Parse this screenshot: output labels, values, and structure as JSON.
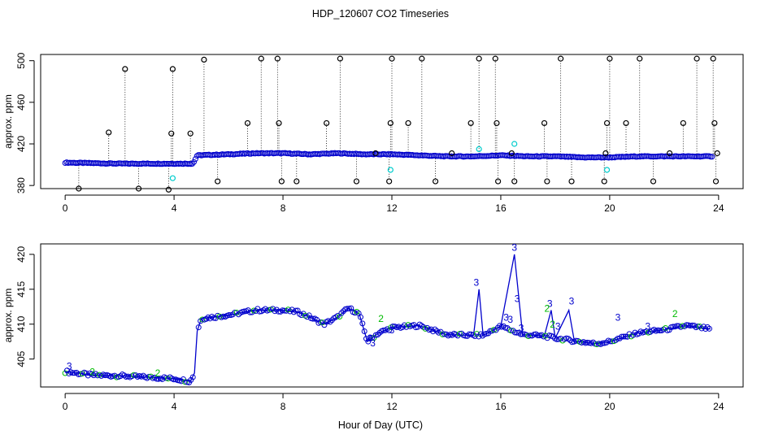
{
  "title": "HDP_120607  CO2 Timeseries",
  "colors": {
    "black": "#000000",
    "blue": "#0000cc",
    "cyan": "#00cccc",
    "green": "#00bb00"
  },
  "chart_data": [
    {
      "type": "scatter",
      "ylabel": "approx. ppm",
      "xlim": [
        -0.9,
        24.9
      ],
      "ylim": [
        377,
        506
      ],
      "xticks": [
        0,
        4,
        8,
        12,
        16,
        20,
        24
      ],
      "yticks": [
        380,
        420,
        460,
        500
      ],
      "xticklabels": [
        "0",
        "4",
        "8",
        "12",
        "16",
        "20",
        "24"
      ],
      "yticklabels": [
        "380",
        "420",
        "460",
        "500"
      ],
      "baseline_segments": [
        [
          0,
          402
        ],
        [
          2,
          401
        ],
        [
          4,
          401
        ],
        [
          4.7,
          401
        ],
        [
          4.85,
          409
        ],
        [
          6,
          410
        ],
        [
          7,
          411
        ],
        [
          8,
          411
        ],
        [
          9,
          410
        ],
        [
          10,
          411
        ],
        [
          11,
          410
        ],
        [
          12,
          410
        ],
        [
          13,
          409
        ],
        [
          14,
          408
        ],
        [
          15,
          408
        ],
        [
          16,
          409
        ],
        [
          17,
          408
        ],
        [
          18,
          408
        ],
        [
          19,
          407
        ],
        [
          20,
          407
        ],
        [
          21,
          408
        ],
        [
          22,
          408
        ],
        [
          23,
          408
        ],
        [
          23.8,
          408
        ]
      ],
      "spikes": [
        [
          0.5,
          377
        ],
        [
          1.6,
          431
        ],
        [
          2.2,
          492
        ],
        [
          2.7,
          377
        ],
        [
          3.8,
          376
        ],
        [
          3.9,
          430
        ],
        [
          3.95,
          492
        ],
        [
          4.6,
          430
        ],
        [
          5.1,
          501
        ],
        [
          5.6,
          384
        ],
        [
          6.7,
          440
        ],
        [
          7.2,
          502
        ],
        [
          7.8,
          502
        ],
        [
          7.85,
          440
        ],
        [
          7.95,
          384
        ],
        [
          8.5,
          384
        ],
        [
          9.6,
          440
        ],
        [
          10.1,
          502
        ],
        [
          10.7,
          384
        ],
        [
          11.4,
          411
        ],
        [
          11.9,
          384
        ],
        [
          11.95,
          440
        ],
        [
          12.0,
          502
        ],
        [
          12.6,
          440
        ],
        [
          13.1,
          502
        ],
        [
          13.6,
          384
        ],
        [
          14.2,
          411
        ],
        [
          14.9,
          440
        ],
        [
          15.2,
          502
        ],
        [
          15.8,
          502
        ],
        [
          15.85,
          440
        ],
        [
          15.9,
          384
        ],
        [
          16.4,
          411
        ],
        [
          16.5,
          384
        ],
        [
          17.6,
          440
        ],
        [
          17.7,
          384
        ],
        [
          18.2,
          502
        ],
        [
          18.6,
          384
        ],
        [
          19.8,
          384
        ],
        [
          19.85,
          411
        ],
        [
          19.9,
          440
        ],
        [
          20.0,
          502
        ],
        [
          20.6,
          440
        ],
        [
          21.1,
          502
        ],
        [
          21.6,
          384
        ],
        [
          22.2,
          411
        ],
        [
          22.7,
          440
        ],
        [
          23.2,
          502
        ],
        [
          23.8,
          502
        ],
        [
          23.85,
          440
        ],
        [
          23.9,
          384
        ],
        [
          23.95,
          411
        ]
      ],
      "cyan_points": [
        [
          3.95,
          387
        ],
        [
          11.95,
          395
        ],
        [
          15.2,
          415
        ],
        [
          16.5,
          420
        ],
        [
          19.9,
          395
        ]
      ]
    },
    {
      "type": "scatter",
      "ylabel": "approx. ppm",
      "xlabel": "Hour of Day (UTC)",
      "xlim": [
        -0.9,
        24.9
      ],
      "ylim": [
        401,
        421.5
      ],
      "xticks": [
        0,
        4,
        8,
        12,
        16,
        20,
        24
      ],
      "yticks": [
        405,
        410,
        415,
        420
      ],
      "xticklabels": [
        "0",
        "4",
        "8",
        "12",
        "16",
        "20",
        "24"
      ],
      "yticklabels": [
        "405",
        "410",
        "415",
        "420"
      ],
      "series": [
        {
          "name": "blue",
          "points": [
            [
              0,
              403.2
            ],
            [
              1,
              402.7
            ],
            [
              2,
              402.6
            ],
            [
              3,
              402.4
            ],
            [
              4,
              402.2
            ],
            [
              4.3,
              402
            ],
            [
              4.6,
              401.8
            ],
            [
              4.75,
              403
            ],
            [
              4.85,
              409
            ],
            [
              5.0,
              410.8
            ],
            [
              6,
              411.3
            ],
            [
              7,
              412
            ],
            [
              7.9,
              412
            ],
            [
              8.5,
              411.8
            ],
            [
              9,
              411
            ],
            [
              9.5,
              410
            ],
            [
              10,
              411
            ],
            [
              10.4,
              412.3
            ],
            [
              10.8,
              411.5
            ],
            [
              11.1,
              407.5
            ],
            [
              11.5,
              408.7
            ],
            [
              12,
              409.5
            ],
            [
              13,
              409.8
            ],
            [
              14,
              408.5
            ],
            [
              15,
              408.4
            ],
            [
              15.2,
              415
            ],
            [
              15.35,
              408.4
            ],
            [
              16,
              409.7
            ],
            [
              16.5,
              420
            ],
            [
              16.8,
              408.5
            ],
            [
              17.6,
              408.3
            ],
            [
              17.85,
              412
            ],
            [
              18,
              408
            ],
            [
              18.5,
              412
            ],
            [
              18.7,
              407.6
            ],
            [
              19.5,
              407.2
            ],
            [
              20,
              407.5
            ],
            [
              21,
              408.7
            ],
            [
              22,
              409.2
            ],
            [
              22.8,
              409.8
            ],
            [
              23.7,
              409.3
            ]
          ]
        }
      ],
      "labels3": [
        [
          0.15,
          403.5
        ],
        [
          15.1,
          415.5
        ],
        [
          16.5,
          420.5
        ],
        [
          16.6,
          413.2
        ],
        [
          17.8,
          412.5
        ],
        [
          18.6,
          412.8
        ],
        [
          16.2,
          410.5
        ],
        [
          16.35,
          410.2
        ],
        [
          20.3,
          410.5
        ],
        [
          11.2,
          407.5
        ],
        [
          12.0,
          408.7
        ],
        [
          18.1,
          409.2
        ],
        [
          21.4,
          409.2
        ],
        [
          16.75,
          409.0
        ],
        [
          11.3,
          406.8
        ]
      ],
      "labels2": [
        [
          11.6,
          410.3
        ],
        [
          17.7,
          411.8
        ],
        [
          22.4,
          411
        ],
        [
          17.9,
          409.5
        ],
        [
          1.0,
          402.7
        ],
        [
          3.4,
          402.5
        ]
      ]
    }
  ]
}
